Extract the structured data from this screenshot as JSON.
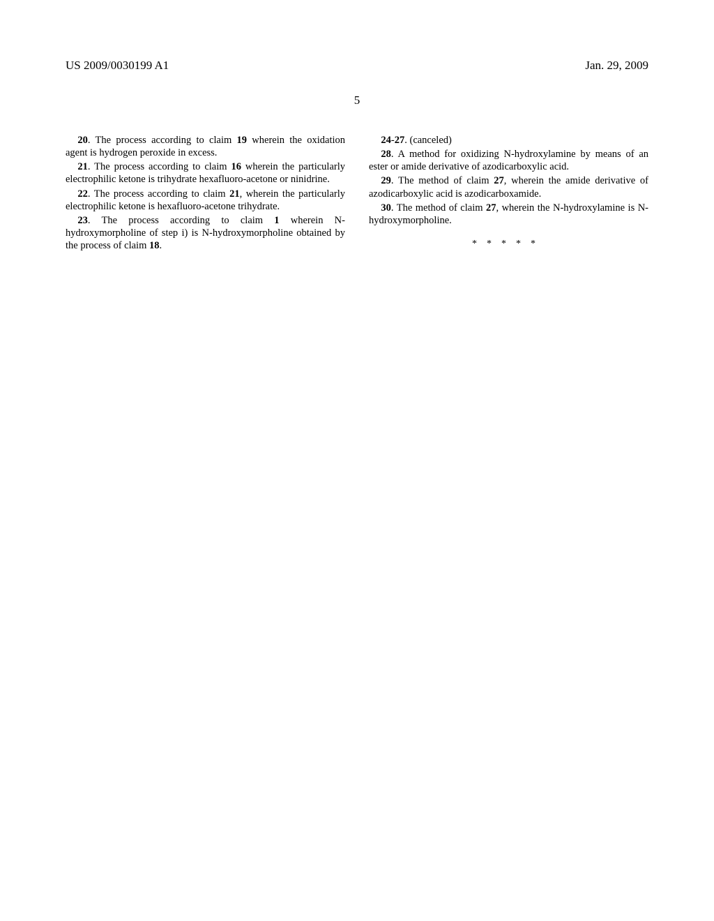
{
  "header": {
    "pub_number": "US 2009/0030199 A1",
    "pub_date": "Jan. 29, 2009"
  },
  "page_number": "5",
  "left_column": {
    "claim20_num": "20",
    "claim20_text": ". The process according to claim ",
    "claim20_ref": "19",
    "claim20_tail": " wherein the oxidation agent is hydrogen peroxide in excess.",
    "claim21_num": "21",
    "claim21_text": ". The process according to claim ",
    "claim21_ref": "16",
    "claim21_tail": " wherein the particularly electrophilic ketone is trihydrate hexafluoro-acetone or ninidrine.",
    "claim22_num": "22",
    "claim22_text": ". The process according to claim ",
    "claim22_ref": "21",
    "claim22_tail": ", wherein the particularly electrophilic ketone is hexafluoro-acetone trihydrate.",
    "claim23_num": "23",
    "claim23_text": ". The process according to claim ",
    "claim23_ref": "1",
    "claim23_mid": " wherein N-hydroxymorpholine of step i) is N-hydroxymorpholine obtained by the process of claim ",
    "claim23_ref2": "18",
    "claim23_tail": "."
  },
  "right_column": {
    "claim2427_num": "24",
    "claim2427_dash": "-",
    "claim2427_num2": "27",
    "claim2427_text": ". (canceled)",
    "claim28_num": "28",
    "claim28_text": ". A method for oxidizing N-hydroxylamine by means of an ester or amide derivative of azodicarboxylic acid.",
    "claim29_num": "29",
    "claim29_text": ". The method of claim ",
    "claim29_ref": "27",
    "claim29_tail": ", wherein the amide derivative of azodicarboxylic acid is azodicarboxamide.",
    "claim30_num": "30",
    "claim30_text": ". The method of claim ",
    "claim30_ref": "27",
    "claim30_tail": ", wherein the N-hydroxylamine is N-hydroxymorpholine."
  },
  "end_marker": "*****"
}
